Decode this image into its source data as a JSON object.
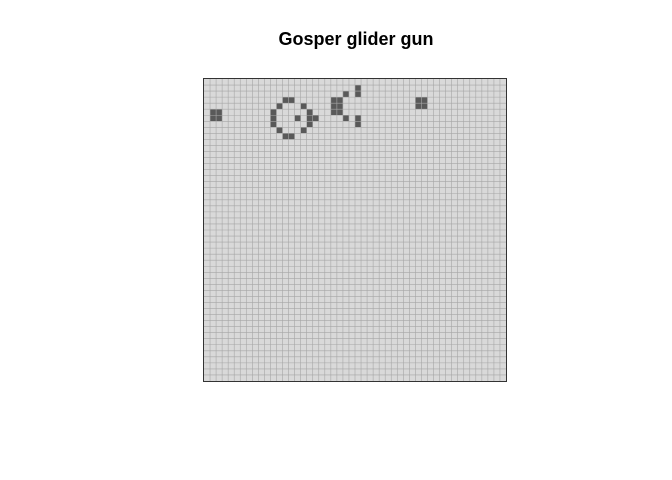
{
  "title": "Gosper glider gun",
  "board": {
    "rows": 50,
    "cols": 50,
    "colors": {
      "dead": "#d9d9d9",
      "alive": "#595959",
      "grid": "#a6a6a6",
      "border": "#333333"
    },
    "pattern_name": "Gosper glider gun",
    "live_cells": [
      [
        5,
        1
      ],
      [
        5,
        2
      ],
      [
        6,
        1
      ],
      [
        6,
        2
      ],
      [
        3,
        13
      ],
      [
        3,
        14
      ],
      [
        4,
        12
      ],
      [
        4,
        16
      ],
      [
        5,
        11
      ],
      [
        5,
        17
      ],
      [
        6,
        11
      ],
      [
        6,
        15
      ],
      [
        6,
        17
      ],
      [
        6,
        18
      ],
      [
        7,
        11
      ],
      [
        7,
        17
      ],
      [
        8,
        12
      ],
      [
        8,
        16
      ],
      [
        9,
        13
      ],
      [
        9,
        14
      ],
      [
        1,
        25
      ],
      [
        2,
        23
      ],
      [
        2,
        25
      ],
      [
        3,
        21
      ],
      [
        3,
        22
      ],
      [
        4,
        21
      ],
      [
        4,
        22
      ],
      [
        5,
        21
      ],
      [
        5,
        22
      ],
      [
        6,
        23
      ],
      [
        6,
        25
      ],
      [
        7,
        25
      ],
      [
        3,
        35
      ],
      [
        3,
        36
      ],
      [
        4,
        35
      ],
      [
        4,
        36
      ]
    ]
  }
}
